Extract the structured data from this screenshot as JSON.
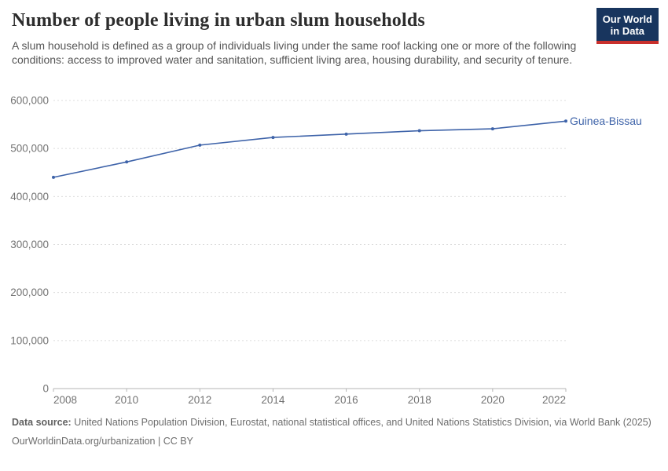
{
  "header": {
    "title": "Number of people living in urban slum households",
    "subtitle": "A slum household is defined as a group of individuals living under the same roof lacking one or more of the following conditions: access to improved water and sanitation, sufficient living area, housing durability, and security of tenure.",
    "logo": {
      "line1": "Our World",
      "line2": "in Data"
    }
  },
  "chart_data": {
    "type": "line",
    "title": "Number of people living in urban slum households",
    "subtitle": "A slum household is defined as a group of individuals living under the same roof lacking one or more of the following conditions: access to improved water and sanitation, sufficient living area, housing durability, and security of tenure.",
    "xlabel": "",
    "ylabel": "",
    "xlim": [
      2008,
      2022
    ],
    "ylim": [
      0,
      600000
    ],
    "x_ticks": [
      2008,
      2010,
      2012,
      2014,
      2016,
      2018,
      2020,
      2022
    ],
    "y_ticks": [
      0,
      100000,
      200000,
      300000,
      400000,
      500000,
      600000
    ],
    "grid": "horizontal-dashed",
    "legend_position": "line-end-label",
    "series": [
      {
        "name": "Guinea-Bissau",
        "color": "#3e63a9",
        "x": [
          2008,
          2010,
          2012,
          2014,
          2016,
          2018,
          2020,
          2022
        ],
        "values": [
          440000,
          472000,
          507000,
          523000,
          530000,
          537000,
          541000,
          557000
        ]
      }
    ]
  },
  "footer": {
    "source_label": "Data source:",
    "source_text": "United Nations Population Division, Eurostat, national statistical offices, and United Nations Statistics Division, via World Bank (2025)",
    "link_text": "OurWorldinData.org/urbanization | CC BY"
  },
  "colors": {
    "accent_line": "#3e63a9",
    "logo_bg": "#18355e",
    "logo_red": "#c9302c",
    "grid": "#dcdcdc",
    "axis": "#b5b5b5",
    "tick_text": "#737373"
  }
}
